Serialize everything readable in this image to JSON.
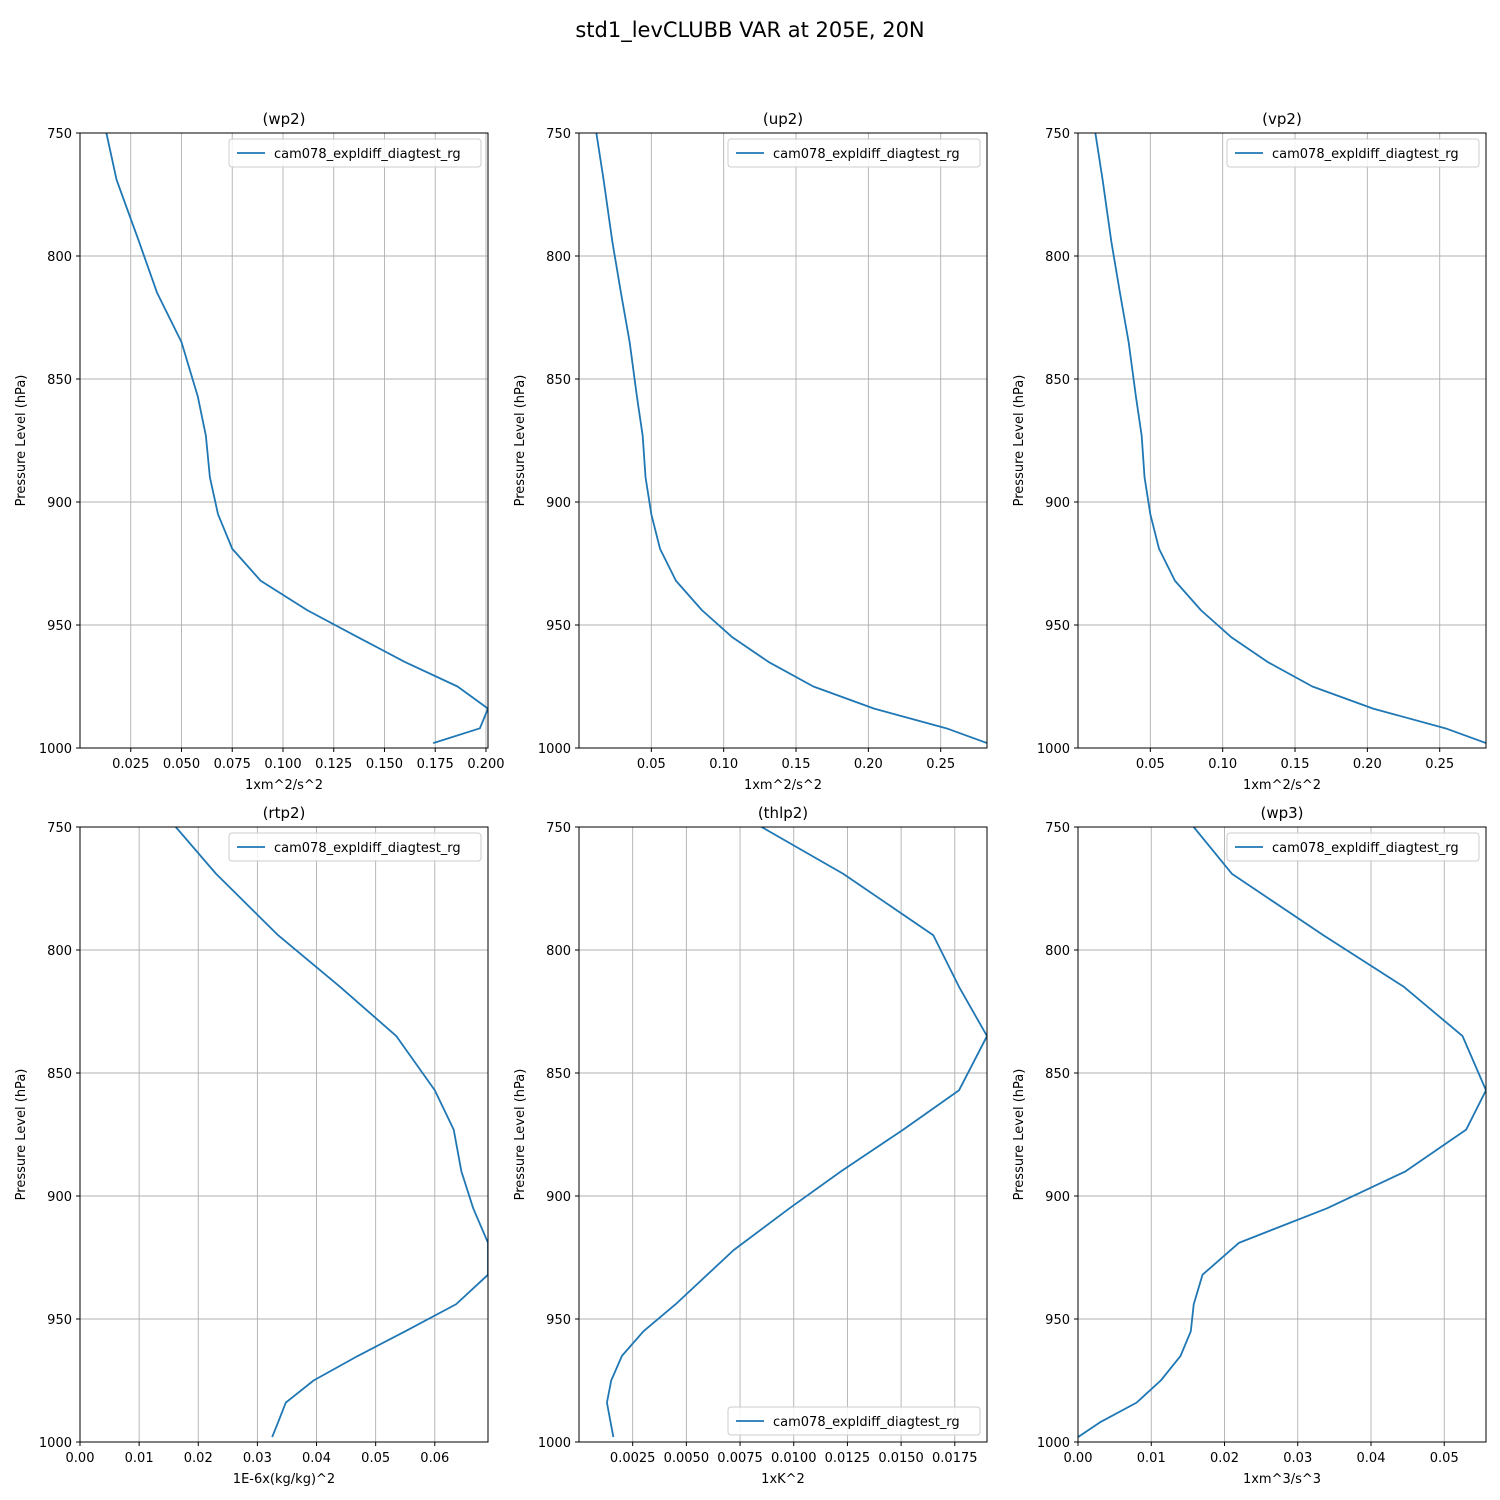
{
  "figure": {
    "title": "std1_levCLUBB VAR at 205E, 20N",
    "series_color": "#1f77b4"
  },
  "chart_data": [
    {
      "type": "line",
      "title": "(wp2)",
      "xlabel": "1xm^2/s^2",
      "ylabel": "Pressure Level (hPa)",
      "xlim": [
        0.0,
        0.201
      ],
      "ylim": [
        1000,
        750
      ],
      "xticks": [
        0.025,
        0.05,
        0.075,
        0.1,
        0.125,
        0.15,
        0.175,
        0.2
      ],
      "xtick_labels": [
        "0.025",
        "0.050",
        "0.075",
        "0.100",
        "0.125",
        "0.150",
        "0.175",
        "0.200"
      ],
      "yticks": [
        750,
        800,
        850,
        900,
        950,
        1000
      ],
      "ytick_labels": [
        "750",
        "800",
        "850",
        "900",
        "950",
        "1000"
      ],
      "grid": true,
      "legend": {
        "position": "upper right"
      },
      "series": [
        {
          "name": "cam078_expldiff_diagtest_rg",
          "x": [
            0.013,
            0.018,
            0.029,
            0.038,
            0.05,
            0.058,
            0.062,
            0.064,
            0.068,
            0.075,
            0.089,
            0.112,
            0.137,
            0.16,
            0.186,
            0.201,
            0.197,
            0.174
          ],
          "y": [
            750,
            769,
            794,
            815,
            835,
            857,
            873,
            890,
            905,
            919,
            932,
            944,
            955,
            965,
            975,
            984,
            992,
            998
          ]
        }
      ]
    },
    {
      "type": "line",
      "title": "(up2)",
      "xlabel": "1xm^2/s^2",
      "ylabel": "Pressure Level (hPa)",
      "xlim": [
        0.0,
        0.282
      ],
      "ylim": [
        1000,
        750
      ],
      "xticks": [
        0.05,
        0.1,
        0.15,
        0.2,
        0.25
      ],
      "xtick_labels": [
        "0.05",
        "0.10",
        "0.15",
        "0.20",
        "0.25"
      ],
      "yticks": [
        750,
        800,
        850,
        900,
        950,
        1000
      ],
      "ytick_labels": [
        "750",
        "800",
        "850",
        "900",
        "950",
        "1000"
      ],
      "grid": true,
      "legend": {
        "position": "upper right"
      },
      "series": [
        {
          "name": "cam078_expldiff_diagtest_rg",
          "x": [
            0.012,
            0.017,
            0.023,
            0.029,
            0.035,
            0.04,
            0.044,
            0.046,
            0.05,
            0.056,
            0.067,
            0.085,
            0.106,
            0.131,
            0.162,
            0.204,
            0.254,
            0.282
          ],
          "y": [
            750,
            769,
            794,
            815,
            835,
            857,
            873,
            890,
            905,
            919,
            932,
            944,
            955,
            965,
            975,
            984,
            992,
            998
          ]
        }
      ]
    },
    {
      "type": "line",
      "title": "(vp2)",
      "xlabel": "1xm^2/s^2",
      "ylabel": "Pressure Level (hPa)",
      "xlim": [
        0.0,
        0.282
      ],
      "ylim": [
        1000,
        750
      ],
      "xticks": [
        0.05,
        0.1,
        0.15,
        0.2,
        0.25
      ],
      "xtick_labels": [
        "0.05",
        "0.10",
        "0.15",
        "0.20",
        "0.25"
      ],
      "yticks": [
        750,
        800,
        850,
        900,
        950,
        1000
      ],
      "ytick_labels": [
        "750",
        "800",
        "850",
        "900",
        "950",
        "1000"
      ],
      "grid": true,
      "legend": {
        "position": "upper right"
      },
      "series": [
        {
          "name": "cam078_expldiff_diagtest_rg",
          "x": [
            0.012,
            0.017,
            0.023,
            0.029,
            0.035,
            0.04,
            0.044,
            0.046,
            0.05,
            0.056,
            0.067,
            0.085,
            0.106,
            0.131,
            0.162,
            0.204,
            0.254,
            0.282
          ],
          "y": [
            750,
            769,
            794,
            815,
            835,
            857,
            873,
            890,
            905,
            919,
            932,
            944,
            955,
            965,
            975,
            984,
            992,
            998
          ]
        }
      ]
    },
    {
      "type": "line",
      "title": "(rtp2)",
      "xlabel": "1E-6x(kg/kg)^2",
      "ylabel": "Pressure Level (hPa)",
      "xlim": [
        0.0,
        0.069
      ],
      "ylim": [
        1000,
        750
      ],
      "xticks": [
        0.0,
        0.01,
        0.02,
        0.03,
        0.04,
        0.05,
        0.06
      ],
      "xtick_labels": [
        "0.00",
        "0.01",
        "0.02",
        "0.03",
        "0.04",
        "0.05",
        "0.06"
      ],
      "yticks": [
        750,
        800,
        850,
        900,
        950,
        1000
      ],
      "ytick_labels": [
        "750",
        "800",
        "850",
        "900",
        "950",
        "1000"
      ],
      "grid": true,
      "legend": {
        "position": "upper right"
      },
      "series": [
        {
          "name": "cam078_expldiff_diagtest_rg",
          "x": [
            0.0162,
            0.023,
            0.0335,
            0.044,
            0.0535,
            0.06,
            0.0632,
            0.0645,
            0.0665,
            0.069,
            0.069,
            0.0636,
            0.055,
            0.047,
            0.0395,
            0.0348,
            0.0335,
            0.0325
          ],
          "y": [
            750,
            769,
            794,
            815,
            835,
            857,
            873,
            890,
            905,
            919,
            932,
            944,
            955,
            965,
            975,
            984,
            992,
            998
          ]
        }
      ]
    },
    {
      "type": "line",
      "title": "(thlp2)",
      "xlabel": "1xK^2",
      "ylabel": "Pressure Level (hPa)",
      "xlim": [
        0.0,
        0.019
      ],
      "ylim": [
        1000,
        750
      ],
      "xticks": [
        0.0025,
        0.005,
        0.0075,
        0.01,
        0.0125,
        0.015,
        0.0175
      ],
      "xtick_labels": [
        "0.0025",
        "0.0050",
        "0.0075",
        "0.0100",
        "0.0125",
        "0.0150",
        "0.0175"
      ],
      "yticks": [
        750,
        800,
        850,
        900,
        950,
        1000
      ],
      "ytick_labels": [
        "750",
        "800",
        "850",
        "900",
        "950",
        "1000"
      ],
      "grid": true,
      "legend": {
        "position": "lower right"
      },
      "series": [
        {
          "name": "cam078_expldiff_diagtest_rg",
          "x": [
            0.0085,
            0.0123,
            0.0165,
            0.0177,
            0.019,
            0.0177,
            0.0151,
            0.0122,
            0.0098,
            0.0072,
            0.0045,
            0.003,
            0.002,
            0.0015,
            0.0013,
            0.0016
          ],
          "y": [
            750,
            769,
            794,
            815,
            835,
            857,
            873,
            890,
            905,
            922,
            944,
            955,
            965,
            975,
            984,
            998
          ]
        }
      ]
    },
    {
      "type": "line",
      "title": "(wp3)",
      "xlabel": "1xm^3/s^3",
      "ylabel": "Pressure Level (hPa)",
      "xlim": [
        0.0,
        0.0557
      ],
      "ylim": [
        1000,
        750
      ],
      "xticks": [
        0.0,
        0.01,
        0.02,
        0.03,
        0.04,
        0.05
      ],
      "xtick_labels": [
        "0.00",
        "0.01",
        "0.02",
        "0.03",
        "0.04",
        "0.05"
      ],
      "yticks": [
        750,
        800,
        850,
        900,
        950,
        1000
      ],
      "ytick_labels": [
        "750",
        "800",
        "850",
        "900",
        "950",
        "1000"
      ],
      "grid": true,
      "legend": {
        "position": "upper right"
      },
      "series": [
        {
          "name": "cam078_expldiff_diagtest_rg",
          "x": [
            0.0158,
            0.021,
            0.0335,
            0.0445,
            0.0525,
            0.0557,
            0.053,
            0.0447,
            0.034,
            0.022,
            0.017,
            0.0158,
            0.0154,
            0.014,
            0.0113,
            0.008,
            0.003,
            0.0
          ],
          "y": [
            750,
            769,
            794,
            815,
            835,
            857,
            873,
            890,
            905,
            919,
            932,
            944,
            955,
            965,
            975,
            984,
            992,
            998
          ]
        }
      ]
    }
  ]
}
